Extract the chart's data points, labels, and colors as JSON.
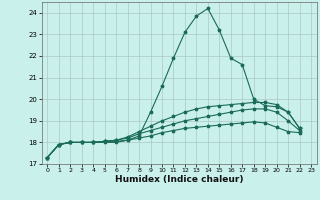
{
  "title": "",
  "xlabel": "Humidex (Indice chaleur)",
  "ylabel": "",
  "bg_color": "#caf0eb",
  "grid_color": "#aac8c4",
  "line_color": "#1a6b5a",
  "xlim": [
    -0.5,
    23.5
  ],
  "ylim": [
    17,
    24.5
  ],
  "yticks": [
    17,
    18,
    19,
    20,
    21,
    22,
    23,
    24
  ],
  "xticks": [
    0,
    1,
    2,
    3,
    4,
    5,
    6,
    7,
    8,
    9,
    10,
    11,
    12,
    13,
    14,
    15,
    16,
    17,
    18,
    19,
    20,
    21,
    22,
    23
  ],
  "series": [
    [
      17.3,
      17.9,
      18.0,
      18.0,
      18.0,
      18.05,
      18.05,
      18.1,
      18.3,
      19.4,
      20.6,
      21.9,
      23.1,
      23.85,
      24.2,
      23.2,
      21.9,
      21.6,
      20.0,
      19.7,
      19.65,
      19.4,
      18.65
    ],
    [
      17.3,
      17.9,
      18.0,
      18.0,
      18.0,
      18.05,
      18.1,
      18.25,
      18.5,
      18.75,
      19.0,
      19.2,
      19.4,
      19.55,
      19.65,
      19.7,
      19.75,
      19.8,
      19.85,
      19.85,
      19.75,
      19.4,
      18.65
    ],
    [
      17.3,
      17.9,
      18.0,
      18.0,
      18.0,
      18.05,
      18.1,
      18.2,
      18.4,
      18.55,
      18.7,
      18.85,
      19.0,
      19.1,
      19.2,
      19.3,
      19.4,
      19.5,
      19.55,
      19.55,
      19.4,
      19.0,
      18.55
    ],
    [
      17.3,
      17.9,
      18.0,
      18.0,
      18.0,
      18.0,
      18.0,
      18.1,
      18.2,
      18.3,
      18.45,
      18.55,
      18.65,
      18.7,
      18.75,
      18.8,
      18.85,
      18.9,
      18.95,
      18.9,
      18.7,
      18.5,
      18.45
    ]
  ]
}
